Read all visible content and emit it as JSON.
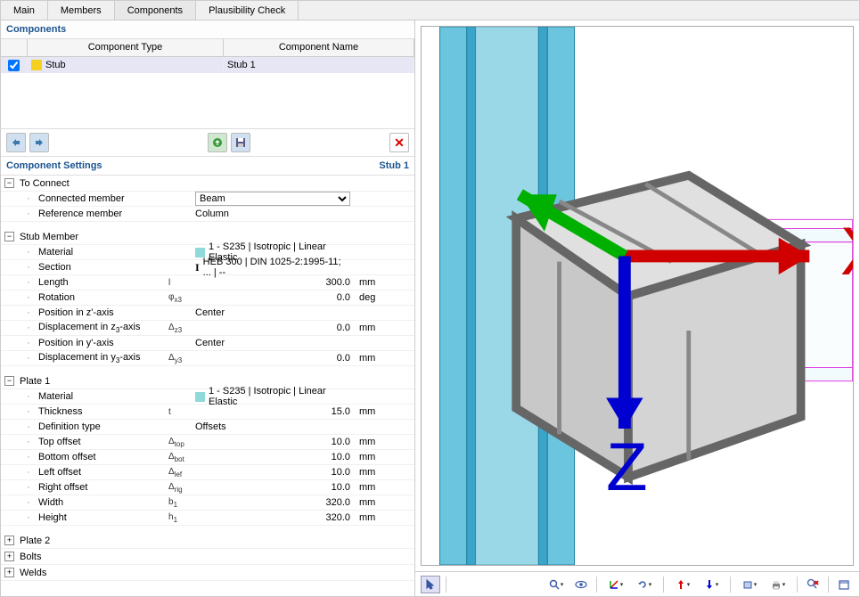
{
  "tabs": {
    "items": [
      "Main",
      "Members",
      "Components",
      "Plausibility Check"
    ],
    "active_index": 2
  },
  "components": {
    "title": "Components",
    "headers": {
      "type": "Component Type",
      "name": "Component Name"
    },
    "row": {
      "checked": true,
      "color": "#f5d020",
      "type": "Stub",
      "name": "Stub 1"
    }
  },
  "settings": {
    "title": "Component Settings",
    "current": "Stub 1"
  },
  "groups": {
    "to_connect": {
      "title": "To Connect",
      "props": {
        "connected_member": {
          "label": "Connected member",
          "value": "Beam",
          "is_select": true
        },
        "reference_member": {
          "label": "Reference member",
          "value": "Column"
        }
      }
    },
    "stub_member": {
      "title": "Stub Member",
      "props": {
        "material": {
          "label": "Material",
          "value": "1 - S235 | Isotropic | Linear Elastic",
          "swatch": "#8fd9d9"
        },
        "section": {
          "label": "Section",
          "value": "HEB 300 | DIN 1025-2:1995-11; ... | --",
          "icon": "I"
        },
        "length": {
          "label": "Length",
          "symbol": "l",
          "value": "300.0",
          "unit": "mm"
        },
        "rotation": {
          "label": "Rotation",
          "symbol_html": "φ<span class='sub'>x3</span>",
          "value": "0.0",
          "unit": "deg"
        },
        "pos_z": {
          "label": "Position in z'-axis",
          "value": "Center"
        },
        "disp_z3": {
          "label": "Displacement in z<span class='sub'>3</span>-axis",
          "symbol_html": "Δ<span class='sub'>z3</span>",
          "value": "0.0",
          "unit": "mm"
        },
        "pos_y": {
          "label": "Position in y'-axis",
          "value": "Center"
        },
        "disp_y3": {
          "label": "Displacement in y<span class='sub'>3</span>-axis",
          "symbol_html": "Δ<span class='sub'>y3</span>",
          "value": "0.0",
          "unit": "mm"
        }
      }
    },
    "plate1": {
      "title": "Plate 1",
      "props": {
        "material": {
          "label": "Material",
          "value": "1 - S235 | Isotropic | Linear Elastic",
          "swatch": "#8fd9d9"
        },
        "thickness": {
          "label": "Thickness",
          "symbol": "t",
          "value": "15.0",
          "unit": "mm"
        },
        "def_type": {
          "label": "Definition type",
          "value": "Offsets"
        },
        "top_off": {
          "label": "Top offset",
          "symbol_html": "Δ<span class='sub'>top</span>",
          "value": "10.0",
          "unit": "mm"
        },
        "bot_off": {
          "label": "Bottom offset",
          "symbol_html": "Δ<span class='sub'>bot</span>",
          "value": "10.0",
          "unit": "mm"
        },
        "lef_off": {
          "label": "Left offset",
          "symbol_html": "Δ<span class='sub'>lef</span>",
          "value": "10.0",
          "unit": "mm"
        },
        "rig_off": {
          "label": "Right offset",
          "symbol_html": "Δ<span class='sub'>rig</span>",
          "value": "10.0",
          "unit": "mm"
        },
        "width": {
          "label": "Width",
          "symbol_html": "b<span class='sub'>1</span>",
          "value": "320.0",
          "unit": "mm"
        },
        "height": {
          "label": "Height",
          "symbol_html": "h<span class='sub'>1</span>",
          "value": "320.0",
          "unit": "mm"
        }
      }
    },
    "plate2": {
      "title": "Plate 2"
    },
    "bolts": {
      "title": "Bolts"
    },
    "welds": {
      "title": "Welds"
    }
  },
  "viewport": {
    "colors": {
      "column_face": "#6bc5de",
      "column_side": "#3aa5c8",
      "column_dark": "#2080a0",
      "stub_light": "#e8b060",
      "stub_mid": "#d89840",
      "stub_dark": "#b87820",
      "bolt": "#e81010",
      "beam_outline": "#e040e0",
      "beam_fill": "#c8f0f8",
      "background": "#ffffff"
    },
    "axis": {
      "x": "X",
      "z": "Z",
      "x_color": "#d00000",
      "y_color": "#00b000",
      "z_color": "#0000d0"
    }
  }
}
